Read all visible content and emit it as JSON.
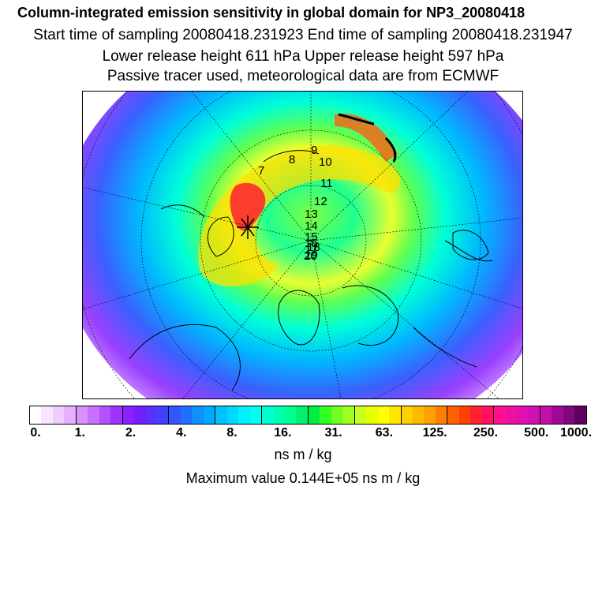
{
  "header": {
    "title": "Column-integrated emission sensitivity in global domain for NP3_20080418",
    "sampling": "Start time of sampling 20080418.231923     End time of sampling 20080418.231947",
    "release": "Lower release height  611 hPa        Upper release height  597 hPa",
    "tracer": "Passive tracer used, meteorological data are from ECMWF"
  },
  "map": {
    "trajectory_labels": [
      "7",
      "8",
      "9",
      "10",
      "11",
      "12",
      "13",
      "14",
      "15",
      "16",
      "17",
      "18",
      "19",
      "20"
    ]
  },
  "colorbar": {
    "tick_labels": [
      "0.",
      "1.",
      "2.",
      "4.",
      "8.",
      "16.",
      "31.",
      "63.",
      "125.",
      "250.",
      "500.",
      "1000."
    ],
    "colors": [
      "#ffffff",
      "#f8e6ff",
      "#f0ccff",
      "#e6b0ff",
      "#d890ff",
      "#c870ff",
      "#b550ff",
      "#a030ff",
      "#8a20ff",
      "#7020ff",
      "#5a30ff",
      "#4040ff",
      "#3355ff",
      "#2070ff",
      "#1090ff",
      "#00a8ff",
      "#00c0ff",
      "#00d8ff",
      "#00f0ff",
      "#00ffee",
      "#00ffd0",
      "#00ffb0",
      "#00ff90",
      "#00f070",
      "#00ee40",
      "#30ff20",
      "#70ff20",
      "#a0ff20",
      "#c8ff20",
      "#e8ff00",
      "#ffff00",
      "#ffe800",
      "#ffd000",
      "#ffb800",
      "#ffa000",
      "#ff8000",
      "#ff6000",
      "#ff4000",
      "#ff2030",
      "#ff1060",
      "#ff1090",
      "#f010a0",
      "#e010b0",
      "#d010b0",
      "#c010a8",
      "#a00898",
      "#800878",
      "#600060"
    ]
  },
  "units": "ns m / kg",
  "max_value": "Maximum value  0.144E+05 ns m / kg"
}
